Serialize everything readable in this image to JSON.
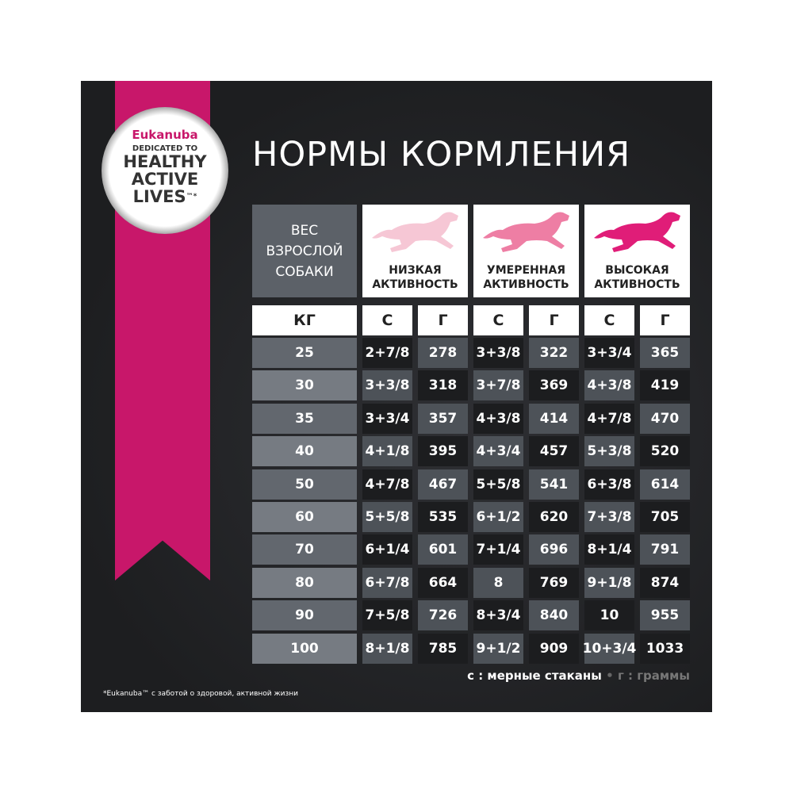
{
  "badge": {
    "brand": "Eukanuba",
    "line1": "DEDICATED TO",
    "line2": "HEALTHY",
    "line3": "ACTIVE",
    "line4": "LIVES",
    "mark": "™*"
  },
  "header": {
    "title": "НОРМЫ КОРМЛЕНИЯ"
  },
  "table": {
    "weight_header": [
      "ВЕС",
      "ВЗРОСЛОЙ",
      "СОБАКИ"
    ],
    "activity_headers": [
      [
        "НИЗКАЯ",
        "АКТИВНОСТЬ"
      ],
      [
        "УМЕРЕННАЯ",
        "АКТИВНОСТЬ"
      ],
      [
        "ВЫСОКАЯ",
        "АКТИВНОСТЬ"
      ]
    ],
    "units": [
      "КГ",
      "С",
      "Г",
      "С",
      "Г",
      "С",
      "Г"
    ],
    "rows": [
      [
        25,
        "2+7/8",
        278,
        "3+3/8",
        322,
        "3+3/4",
        365
      ],
      [
        30,
        "3+3/8",
        318,
        "3+7/8",
        369,
        "4+3/8",
        419
      ],
      [
        35,
        "3+3/4",
        357,
        "4+3/8",
        414,
        "4+7/8",
        470
      ],
      [
        40,
        "4+1/8",
        395,
        "4+3/4",
        457,
        "5+3/8",
        520
      ],
      [
        50,
        "4+7/8",
        467,
        "5+5/8",
        541,
        "6+3/8",
        614
      ],
      [
        60,
        "5+5/8",
        535,
        "6+1/2",
        620,
        "7+3/8",
        705
      ],
      [
        70,
        "6+1/4",
        601,
        "7+1/4",
        696,
        "8+1/4",
        791
      ],
      [
        80,
        "6+7/8",
        664,
        "8",
        769,
        "9+1/8",
        874
      ],
      [
        90,
        "7+5/8",
        726,
        "8+3/4",
        840,
        "10",
        955
      ],
      [
        100,
        "8+1/8",
        785,
        "9+1/2",
        909,
        "10+3/4",
        1033
      ]
    ]
  },
  "legend": {
    "cups": "с : мерные стаканы",
    "separator": "•",
    "grams": "г : граммы"
  },
  "footnote": "*Eukanuba™ с заботой о здоровой, активной жизни"
}
